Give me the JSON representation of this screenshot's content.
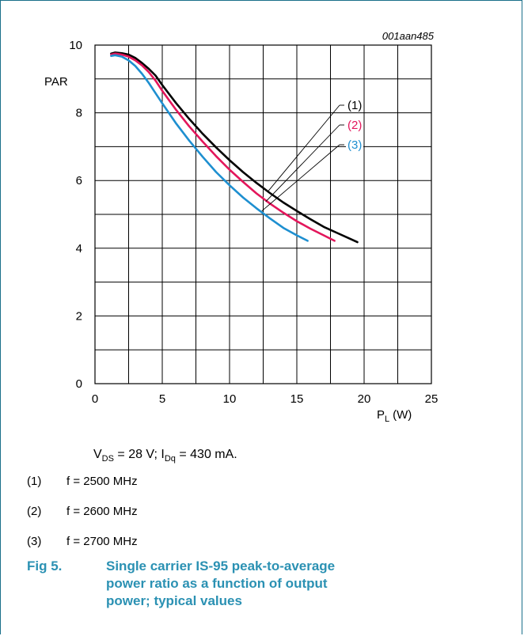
{
  "figure_code": "001aan485",
  "chart_data": {
    "type": "line",
    "ylabel": "PAR",
    "xlabel": {
      "main": "P",
      "sub": "L",
      "unit": "(W)"
    },
    "xlim": [
      0,
      25
    ],
    "ylim": [
      0,
      10
    ],
    "x_ticks": [
      "0",
      "5",
      "10",
      "15",
      "20",
      "25"
    ],
    "y_ticks": [
      "0",
      "2",
      "4",
      "6",
      "8",
      "10"
    ],
    "grid": true,
    "series": [
      {
        "name": "(1)",
        "color": "#000000",
        "label_color": "#000000",
        "points": [
          [
            1.2,
            9.75
          ],
          [
            1.5,
            9.78
          ],
          [
            2,
            9.76
          ],
          [
            2.5,
            9.72
          ],
          [
            3,
            9.62
          ],
          [
            3.5,
            9.47
          ],
          [
            4,
            9.3
          ],
          [
            4.5,
            9.1
          ],
          [
            5,
            8.82
          ],
          [
            6,
            8.3
          ],
          [
            7,
            7.82
          ],
          [
            8,
            7.38
          ],
          [
            9,
            6.98
          ],
          [
            10,
            6.6
          ],
          [
            11,
            6.25
          ],
          [
            12,
            5.93
          ],
          [
            13,
            5.63
          ],
          [
            14,
            5.35
          ],
          [
            15,
            5.1
          ],
          [
            16,
            4.86
          ],
          [
            17,
            4.63
          ],
          [
            18,
            4.45
          ],
          [
            19,
            4.27
          ],
          [
            19.5,
            4.18
          ]
        ]
      },
      {
        "name": "(2)",
        "color": "#e3165b",
        "label_color": "#e3165b",
        "points": [
          [
            1.2,
            9.72
          ],
          [
            1.5,
            9.75
          ],
          [
            2,
            9.72
          ],
          [
            2.5,
            9.66
          ],
          [
            3,
            9.55
          ],
          [
            3.5,
            9.4
          ],
          [
            4,
            9.2
          ],
          [
            4.5,
            8.95
          ],
          [
            5,
            8.65
          ],
          [
            6,
            8.1
          ],
          [
            7,
            7.6
          ],
          [
            8,
            7.15
          ],
          [
            9,
            6.72
          ],
          [
            10,
            6.32
          ],
          [
            11,
            5.96
          ],
          [
            12,
            5.62
          ],
          [
            13,
            5.32
          ],
          [
            14,
            5.05
          ],
          [
            15,
            4.8
          ],
          [
            16,
            4.58
          ],
          [
            17,
            4.38
          ],
          [
            17.8,
            4.22
          ]
        ]
      },
      {
        "name": "(3)",
        "color": "#1e8fd0",
        "label_color": "#1e8fd0",
        "points": [
          [
            1.2,
            9.68
          ],
          [
            1.5,
            9.7
          ],
          [
            2,
            9.66
          ],
          [
            2.5,
            9.55
          ],
          [
            3,
            9.38
          ],
          [
            3.5,
            9.15
          ],
          [
            4,
            8.88
          ],
          [
            4.5,
            8.58
          ],
          [
            5,
            8.28
          ],
          [
            6,
            7.7
          ],
          [
            7,
            7.18
          ],
          [
            8,
            6.7
          ],
          [
            9,
            6.25
          ],
          [
            10,
            5.86
          ],
          [
            11,
            5.5
          ],
          [
            12,
            5.18
          ],
          [
            13,
            4.88
          ],
          [
            14,
            4.6
          ],
          [
            15,
            4.38
          ],
          [
            15.8,
            4.22
          ]
        ]
      }
    ]
  },
  "notes": {
    "conditions": {
      "vds_main": "V",
      "vds_sub": "DS",
      "vds_rest": " = 28 V; ",
      "idq_main": "I",
      "idq_sub": "Dq",
      "idq_rest": " = 430 mA."
    },
    "items": [
      {
        "num": "(1)",
        "text": "f = 2500 MHz"
      },
      {
        "num": "(2)",
        "text": "f = 2600 MHz"
      },
      {
        "num": "(3)",
        "text": "f = 2700 MHz"
      }
    ]
  },
  "caption": {
    "number": "Fig 5.",
    "text": "Single carrier IS-95 peak-to-average power ratio as a function of output power; typical values"
  }
}
